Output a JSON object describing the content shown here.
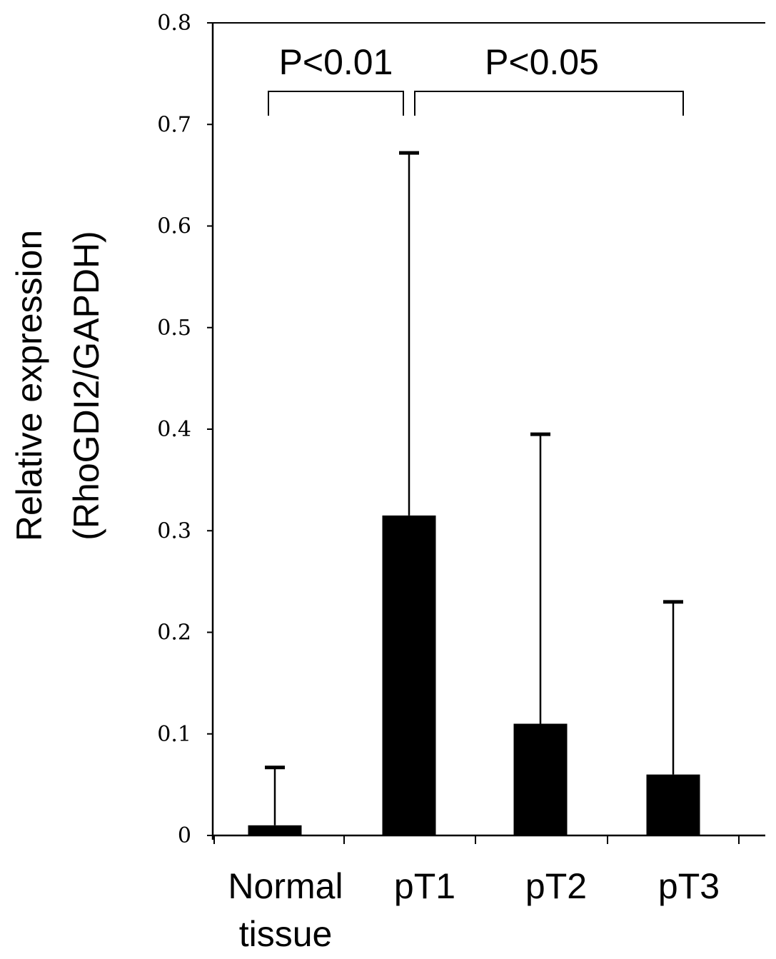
{
  "chart_data": {
    "type": "bar",
    "title": "",
    "xlabel": "",
    "ylabel_lines": [
      "Relative expression",
      "(RhoGDI2/GAPDH)"
    ],
    "categories": [
      {
        "lines": [
          "Normal",
          "tissue"
        ]
      },
      {
        "lines": [
          "pT1"
        ]
      },
      {
        "lines": [
          "pT2"
        ]
      },
      {
        "lines": [
          "pT3"
        ]
      }
    ],
    "values": [
      0.01,
      0.315,
      0.11,
      0.06
    ],
    "error_upper": [
      0.067,
      0.672,
      0.395,
      0.23
    ],
    "ylim": [
      0,
      0.8
    ],
    "yticks": [
      "0",
      "0.1",
      "0.2",
      "0.3",
      "0.4",
      "0.5",
      "0.6",
      "0.7",
      "0.8"
    ],
    "grid": false,
    "bar_color": "#000000",
    "annotations": [
      {
        "text": "P<0.01",
        "from_category": 0,
        "to_category": 1
      },
      {
        "text": "P<0.05",
        "from_category": 1,
        "to_category": 3
      }
    ]
  }
}
